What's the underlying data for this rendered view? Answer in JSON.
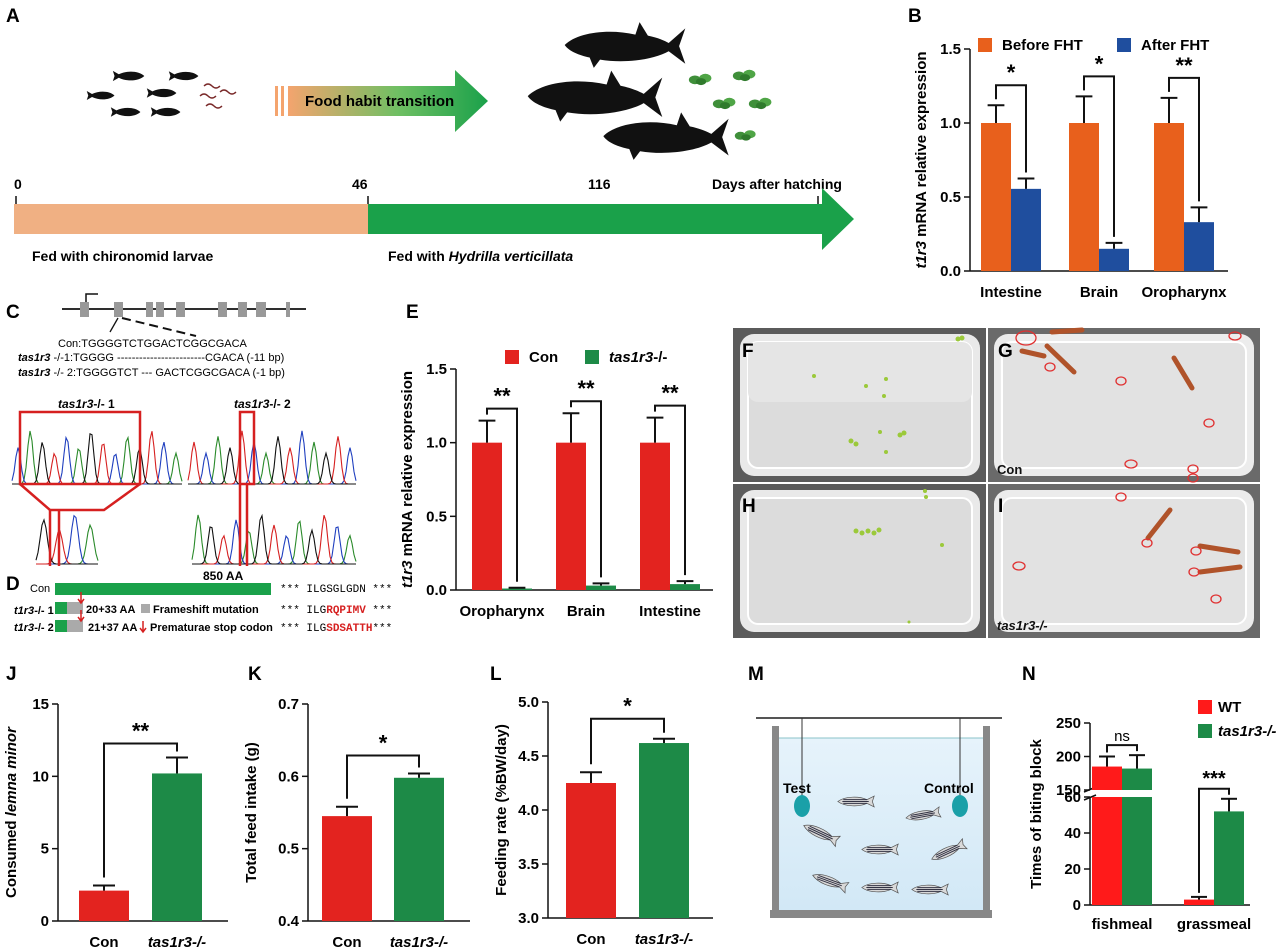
{
  "panel_letters": {
    "A": "A",
    "B": "B",
    "C": "C",
    "D": "D",
    "E": "E",
    "F": "F",
    "G": "G",
    "H": "H",
    "I": "I",
    "J": "J",
    "K": "K",
    "L": "L",
    "M": "M",
    "N": "N"
  },
  "panelA": {
    "arrow_label": "Food habit transition",
    "days": [
      "0",
      "46",
      "116"
    ],
    "days_label": "Days after hatching",
    "phase1": "Fed with chironomid larvae",
    "phase2_prefix": "Fed with ",
    "phase2_species": "Hydrilla verticillata",
    "colors": {
      "phase1": "#f0b083",
      "phase2": "#1aa14a"
    }
  },
  "panelC": {
    "lines": [
      {
        "prefix": "",
        "label": "Con:",
        "seq": "TGGGGTCTGGACTCGGCGACA"
      },
      {
        "prefix": "tas1r3",
        "label": " -/-1:",
        "seq": "TGGGG ------------------------CGACA (-11 bp)"
      },
      {
        "prefix": "tas1r3",
        "label": " -/- 2:",
        "seq": "TGGGGTCT --- GACTCGGCGACA (-1 bp)"
      }
    ],
    "trace1_label_gene": "tas1r3",
    "trace1_label_suffix": "-/- 1",
    "trace2_label_gene": "tas1r3",
    "trace2_label_suffix": "-/- 2"
  },
  "panelD": {
    "con_label": "Con",
    "aa_label": "850 AA",
    "con_seq": "*** ILGSGLGDN ***",
    "m1_gene": "t1r3",
    "m1_suffix": "-/- 1",
    "m1_aa": "20+33 AA",
    "m1_note": "Frameshift mutation",
    "m1_seq_a": "*** ILG",
    "m1_seq_b": "RQPIMV",
    "m1_seq_c": " ***",
    "m2_gene": "t1r3",
    "m2_suffix": "-/- 2",
    "m2_aa": "21+37 AA",
    "m2_note": "Prematurae stop codon",
    "m2_seq_a": "*** ILG",
    "m2_seq_b": "SDSATTH",
    "m2_seq_c": "***"
  },
  "photos": {
    "F": "",
    "G_label": "Con",
    "H": "",
    "I_label": "tas1r3-/-"
  },
  "panelM": {
    "test": "Test",
    "control": "Control"
  },
  "chart_data": [
    {
      "id": "B",
      "type": "bar",
      "categories": [
        "Intestine",
        "Brain",
        "Oropharynx"
      ],
      "series": [
        {
          "name": "Before FHT",
          "color": "#e8601c",
          "values": [
            1.0,
            1.0,
            1.0
          ],
          "errors": [
            0.12,
            0.18,
            0.17
          ]
        },
        {
          "name": "After FHT",
          "color": "#1f4e9e",
          "values": [
            0.555,
            0.15,
            0.33
          ],
          "errors": [
            0.07,
            0.04,
            0.1
          ]
        }
      ],
      "ylabel_gene": "t1r3",
      "ylabel": " mRNA relative expression",
      "ylim": [
        0,
        1.5
      ],
      "yticks": [
        "0.0",
        "0.5",
        "1.0",
        "1.5"
      ],
      "significance": [
        "*",
        "*",
        "**"
      ]
    },
    {
      "id": "E",
      "type": "bar",
      "categories": [
        "Oropharynx",
        "Brain",
        "Intestine"
      ],
      "series": [
        {
          "name": "Con",
          "color": "#e3231f",
          "values": [
            1.0,
            1.0,
            1.0
          ],
          "errors": [
            0.15,
            0.2,
            0.17
          ]
        },
        {
          "name": "tas1r3-/-",
          "color": "#1d8a47",
          "values": [
            0.01,
            0.03,
            0.04
          ],
          "errors": [
            0.005,
            0.015,
            0.02
          ]
        }
      ],
      "ylabel_gene": "t1r3",
      "ylabel": " mRNA relative expression",
      "ylim": [
        0,
        1.5
      ],
      "yticks": [
        "0.0",
        "0.5",
        "1.0",
        "1.5"
      ],
      "significance": [
        "**",
        "**",
        "**"
      ]
    },
    {
      "id": "J",
      "type": "bar",
      "categories": [
        "Con",
        "tas1r3-/-"
      ],
      "values": [
        2.1,
        10.2
      ],
      "errors": [
        0.35,
        1.1
      ],
      "colors": [
        "#e3231f",
        "#1d8a47"
      ],
      "ylabel": "Consumed ",
      "ylabel_italic": "lemna minor",
      "ylim": [
        0,
        15
      ],
      "yticks": [
        "0",
        "5",
        "10",
        "15"
      ],
      "significance": "**"
    },
    {
      "id": "K",
      "type": "bar",
      "categories": [
        "Con",
        "tas1r3-/-"
      ],
      "values": [
        0.545,
        0.598
      ],
      "errors": [
        0.013,
        0.006
      ],
      "colors": [
        "#e3231f",
        "#1d8a47"
      ],
      "ylabel": "Total feed intake (g)",
      "ylim": [
        0.4,
        0.7
      ],
      "yticks": [
        "0.4",
        "0.5",
        "0.6",
        "0.7"
      ],
      "significance": "*"
    },
    {
      "id": "L",
      "type": "bar",
      "categories": [
        "Con",
        "tas1r3-/-"
      ],
      "values": [
        4.25,
        4.62
      ],
      "errors": [
        0.1,
        0.04
      ],
      "colors": [
        "#e3231f",
        "#1d8a47"
      ],
      "ylabel": "Feeding rate (%BW/day)",
      "ylim": [
        3.0,
        5.0
      ],
      "yticks": [
        "3.0",
        "3.5",
        "4.0",
        "4.5",
        "5.0"
      ],
      "significance": "*"
    },
    {
      "id": "N",
      "type": "bar",
      "categories": [
        "fishmeal",
        "grassmeal"
      ],
      "series": [
        {
          "name": "WT",
          "color": "#ff1a1a",
          "values": [
            185,
            3
          ],
          "errors": [
            15,
            1.5
          ]
        },
        {
          "name": "tas1r3-/-",
          "color": "#1d8a47",
          "values": [
            182,
            52
          ],
          "errors": [
            20,
            7
          ]
        }
      ],
      "ylabel": "Times of biting block",
      "axis_break": [
        60,
        150
      ],
      "yticks_low": [
        "0",
        "20",
        "40",
        "60"
      ],
      "yticks_high": [
        "150",
        "200",
        "250"
      ],
      "significance": [
        "ns",
        "***"
      ]
    }
  ]
}
